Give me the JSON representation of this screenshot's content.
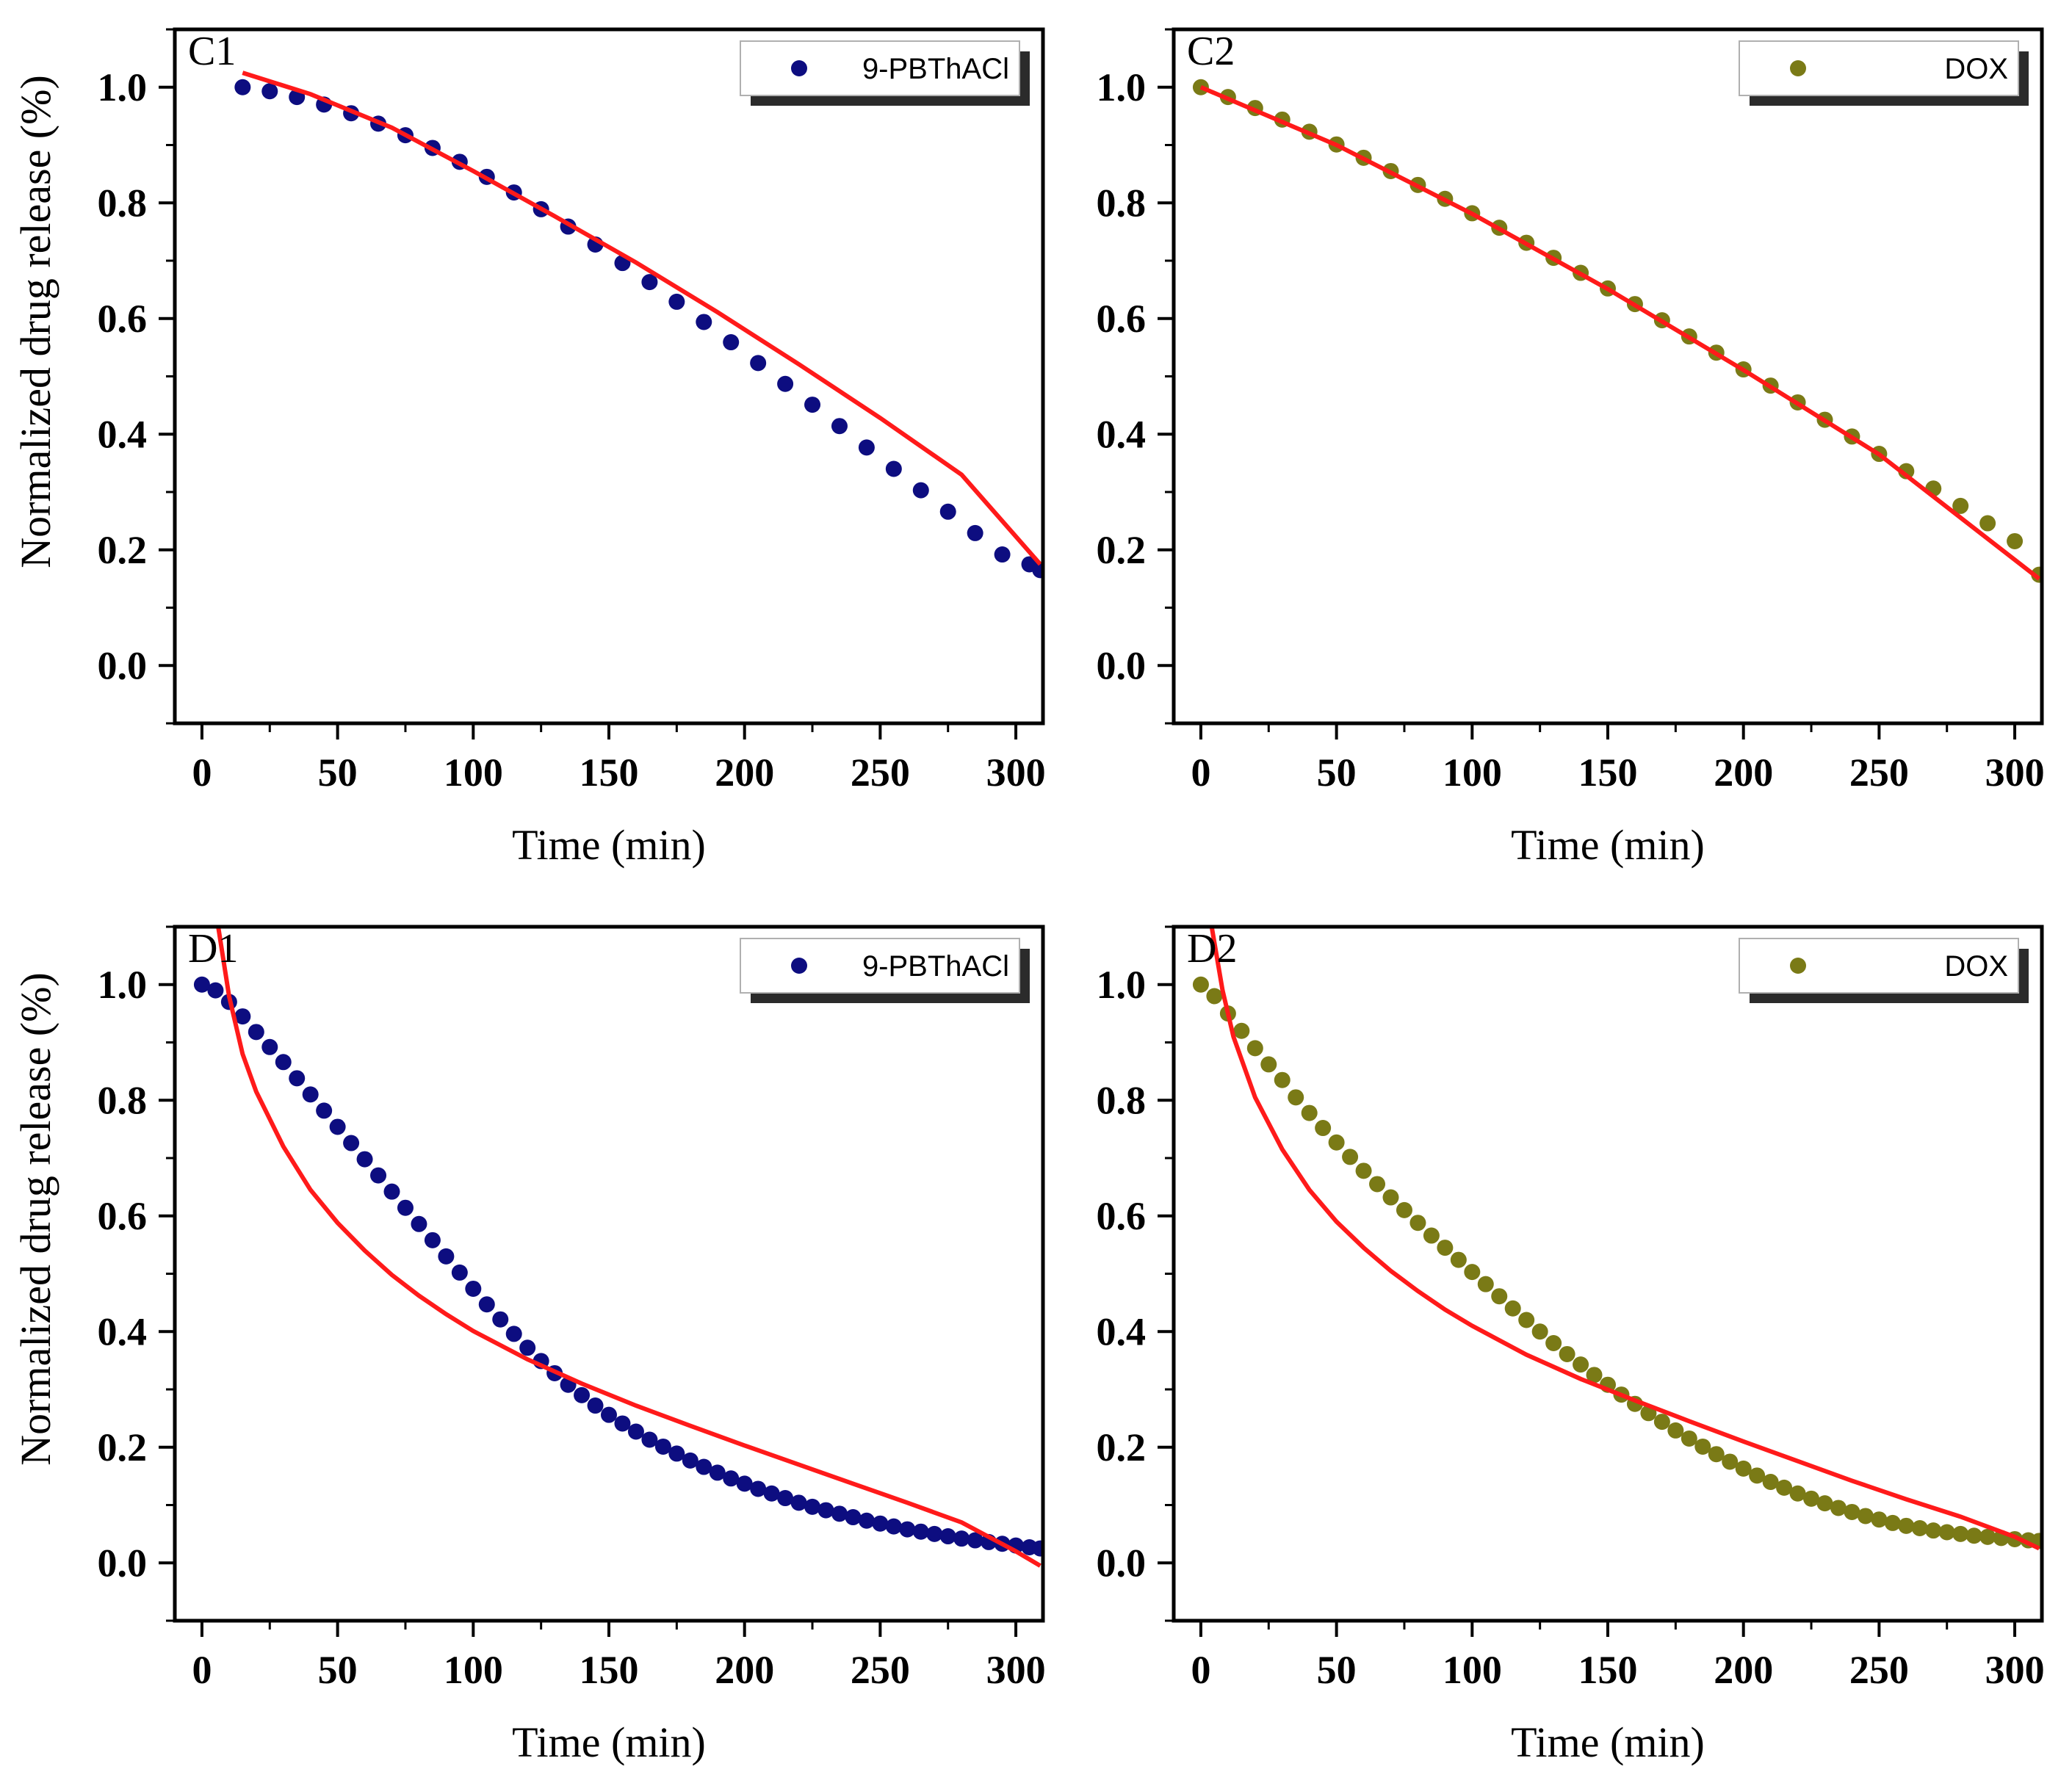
{
  "chart_data": [
    {
      "panel": "C1",
      "type": "scatter",
      "xlabel": "Time (min)",
      "ylabel": "Normalized drug release (%)",
      "xlim": [
        -10,
        310
      ],
      "ylim": [
        -0.1,
        1.1
      ],
      "xticks": [
        0,
        50,
        100,
        150,
        200,
        250,
        300
      ],
      "yticks": [
        0.0,
        0.2,
        0.4,
        0.6,
        0.8,
        1.0
      ],
      "xtick_labels": [
        "0",
        "50",
        "100",
        "150",
        "200",
        "250",
        "300"
      ],
      "ytick_labels": [
        "0.0",
        "0.2",
        "0.4",
        "0.6",
        "0.8",
        "1.0"
      ],
      "legend": "9-PBThACl",
      "legend_position": "top-right",
      "marker_color": "#0d0d80",
      "fit_color": "#ff1a1a",
      "series": [
        {
          "name": "9-PBThACl",
          "kind": "points",
          "x": [
            15,
            25,
            35,
            45,
            55,
            65,
            75,
            85,
            95,
            105,
            115,
            125,
            135,
            145,
            155,
            165,
            175,
            185,
            195,
            205,
            215,
            225,
            235,
            245,
            255,
            265,
            275,
            285,
            295,
            305,
            309
          ],
          "y": [
            1.0,
            0.993,
            0.983,
            0.97,
            0.955,
            0.937,
            0.917,
            0.895,
            0.871,
            0.845,
            0.818,
            0.789,
            0.759,
            0.728,
            0.696,
            0.663,
            0.629,
            0.594,
            0.559,
            0.523,
            0.487,
            0.451,
            0.414,
            0.377,
            0.34,
            0.303,
            0.266,
            0.229,
            0.192,
            0.175,
            0.165
          ]
        },
        {
          "name": "fit",
          "kind": "line",
          "x": [
            15,
            40,
            70,
            100,
            130,
            160,
            190,
            220,
            250,
            280,
            309
          ],
          "y": [
            1.025,
            0.988,
            0.93,
            0.855,
            0.777,
            0.697,
            0.611,
            0.521,
            0.428,
            0.33,
            0.175
          ]
        }
      ]
    },
    {
      "panel": "C2",
      "type": "scatter",
      "xlabel": "Time (min)",
      "ylabel": "",
      "xlim": [
        -10,
        310
      ],
      "ylim": [
        -0.1,
        1.1
      ],
      "xticks": [
        0,
        50,
        100,
        150,
        200,
        250,
        300
      ],
      "yticks": [
        0.0,
        0.2,
        0.4,
        0.6,
        0.8,
        1.0
      ],
      "xtick_labels": [
        "0",
        "50",
        "100",
        "150",
        "200",
        "250",
        "300"
      ],
      "ytick_labels": [
        "0.0",
        "0.2",
        "0.4",
        "0.6",
        "0.8",
        "1.0"
      ],
      "legend": "DOX",
      "legend_position": "top-right",
      "marker_color": "#7a7a16",
      "fit_color": "#ff1a1a",
      "series": [
        {
          "name": "DOX",
          "kind": "points",
          "x": [
            0,
            10,
            20,
            30,
            40,
            50,
            60,
            70,
            80,
            90,
            100,
            110,
            120,
            130,
            140,
            150,
            160,
            170,
            180,
            190,
            200,
            210,
            220,
            230,
            240,
            250,
            260,
            270,
            280,
            290,
            300,
            309
          ],
          "y": [
            1.0,
            0.983,
            0.964,
            0.944,
            0.923,
            0.901,
            0.878,
            0.855,
            0.831,
            0.807,
            0.782,
            0.757,
            0.731,
            0.705,
            0.679,
            0.652,
            0.625,
            0.597,
            0.569,
            0.541,
            0.512,
            0.484,
            0.455,
            0.425,
            0.396,
            0.366,
            0.336,
            0.306,
            0.276,
            0.246,
            0.215,
            0.157
          ]
        },
        {
          "name": "fit",
          "kind": "line",
          "x": [
            0,
            50,
            100,
            150,
            200,
            250,
            309
          ],
          "y": [
            1.0,
            0.9,
            0.781,
            0.651,
            0.511,
            0.365,
            0.15
          ]
        }
      ]
    },
    {
      "panel": "D1",
      "type": "scatter",
      "xlabel": "Time (min)",
      "ylabel": "Normalized drug release (%)",
      "xlim": [
        -10,
        310
      ],
      "ylim": [
        -0.1,
        1.1
      ],
      "xticks": [
        0,
        50,
        100,
        150,
        200,
        250,
        300
      ],
      "yticks": [
        0.0,
        0.2,
        0.4,
        0.6,
        0.8,
        1.0
      ],
      "xtick_labels": [
        "0",
        "50",
        "100",
        "150",
        "200",
        "250",
        "300"
      ],
      "ytick_labels": [
        "0.0",
        "0.2",
        "0.4",
        "0.6",
        "0.8",
        "1.0"
      ],
      "legend": "9-PBThACl",
      "legend_position": "top-right",
      "marker_color": "#0d0d80",
      "fit_color": "#ff1a1a",
      "series": [
        {
          "name": "9-PBThACl",
          "kind": "points",
          "x": [
            0,
            5,
            10,
            15,
            20,
            25,
            30,
            35,
            40,
            45,
            50,
            55,
            60,
            65,
            70,
            75,
            80,
            85,
            90,
            95,
            100,
            105,
            110,
            115,
            120,
            125,
            130,
            135,
            140,
            145,
            150,
            155,
            160,
            165,
            170,
            175,
            180,
            185,
            190,
            195,
            200,
            205,
            210,
            215,
            220,
            225,
            230,
            235,
            240,
            245,
            250,
            255,
            260,
            265,
            270,
            275,
            280,
            285,
            290,
            295,
            300,
            305,
            309
          ],
          "y": [
            1.0,
            0.99,
            0.97,
            0.945,
            0.918,
            0.892,
            0.866,
            0.838,
            0.81,
            0.782,
            0.754,
            0.726,
            0.698,
            0.67,
            0.642,
            0.614,
            0.586,
            0.558,
            0.53,
            0.502,
            0.474,
            0.447,
            0.421,
            0.396,
            0.372,
            0.349,
            0.328,
            0.308,
            0.29,
            0.272,
            0.256,
            0.241,
            0.227,
            0.213,
            0.201,
            0.189,
            0.177,
            0.166,
            0.156,
            0.146,
            0.137,
            0.128,
            0.12,
            0.112,
            0.104,
            0.097,
            0.091,
            0.085,
            0.079,
            0.073,
            0.068,
            0.063,
            0.058,
            0.054,
            0.05,
            0.046,
            0.042,
            0.039,
            0.036,
            0.033,
            0.03,
            0.027,
            0.025
          ]
        },
        {
          "name": "fit",
          "kind": "line",
          "x": [
            6,
            10,
            15,
            20,
            30,
            40,
            50,
            60,
            70,
            80,
            90,
            100,
            120,
            140,
            160,
            180,
            200,
            220,
            240,
            260,
            280,
            300,
            309
          ],
          "y": [
            1.1,
            0.98,
            0.88,
            0.815,
            0.72,
            0.645,
            0.588,
            0.54,
            0.498,
            0.462,
            0.43,
            0.401,
            0.352,
            0.31,
            0.272,
            0.237,
            0.203,
            0.17,
            0.137,
            0.104,
            0.07,
            0.02,
            -0.005
          ]
        }
      ]
    },
    {
      "panel": "D2",
      "type": "scatter",
      "xlabel": "Time (min)",
      "ylabel": "",
      "xlim": [
        -10,
        310
      ],
      "ylim": [
        -0.1,
        1.1
      ],
      "xticks": [
        0,
        50,
        100,
        150,
        200,
        250,
        300
      ],
      "yticks": [
        0.0,
        0.2,
        0.4,
        0.6,
        0.8,
        1.0
      ],
      "xtick_labels": [
        "0",
        "50",
        "100",
        "150",
        "200",
        "250",
        "300"
      ],
      "ytick_labels": [
        "0.0",
        "0.2",
        "0.4",
        "0.6",
        "0.8",
        "1.0"
      ],
      "legend": "DOX",
      "legend_position": "top-right",
      "marker_color": "#7a7a16",
      "fit_color": "#ff1a1a",
      "series": [
        {
          "name": "DOX",
          "kind": "points",
          "x": [
            0,
            5,
            10,
            15,
            20,
            25,
            30,
            35,
            40,
            45,
            50,
            55,
            60,
            65,
            70,
            75,
            80,
            85,
            90,
            95,
            100,
            105,
            110,
            115,
            120,
            125,
            130,
            135,
            140,
            145,
            150,
            155,
            160,
            165,
            170,
            175,
            180,
            185,
            190,
            195,
            200,
            205,
            210,
            215,
            220,
            225,
            230,
            235,
            240,
            245,
            250,
            255,
            260,
            265,
            270,
            275,
            280,
            285,
            290,
            295,
            300,
            305,
            309
          ],
          "y": [
            1.0,
            0.98,
            0.95,
            0.92,
            0.89,
            0.862,
            0.835,
            0.805,
            0.778,
            0.752,
            0.727,
            0.702,
            0.678,
            0.655,
            0.632,
            0.61,
            0.588,
            0.566,
            0.545,
            0.524,
            0.503,
            0.482,
            0.461,
            0.44,
            0.42,
            0.4,
            0.38,
            0.361,
            0.343,
            0.325,
            0.308,
            0.291,
            0.275,
            0.259,
            0.244,
            0.229,
            0.215,
            0.201,
            0.188,
            0.175,
            0.163,
            0.151,
            0.14,
            0.13,
            0.12,
            0.111,
            0.103,
            0.095,
            0.088,
            0.081,
            0.075,
            0.069,
            0.064,
            0.06,
            0.056,
            0.053,
            0.05,
            0.047,
            0.045,
            0.043,
            0.041,
            0.039,
            0.038
          ]
        },
        {
          "name": "fit",
          "kind": "line",
          "x": [
            4,
            8,
            12,
            20,
            30,
            40,
            50,
            60,
            70,
            80,
            90,
            100,
            120,
            140,
            160,
            180,
            200,
            220,
            240,
            260,
            280,
            300,
            309
          ],
          "y": [
            1.1,
            0.99,
            0.91,
            0.805,
            0.715,
            0.645,
            0.59,
            0.545,
            0.505,
            0.47,
            0.438,
            0.41,
            0.36,
            0.318,
            0.281,
            0.245,
            0.21,
            0.176,
            0.142,
            0.11,
            0.08,
            0.045,
            0.025
          ]
        }
      ]
    }
  ]
}
